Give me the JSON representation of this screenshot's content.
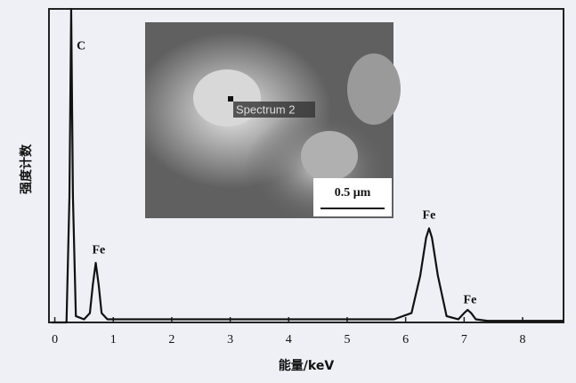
{
  "chart_data": {
    "type": "line",
    "x_label": "能量/keV",
    "y_label": "强度计数",
    "x": [
      -0.05,
      0.2,
      0.25,
      0.28,
      0.31,
      0.36,
      0.5,
      0.6,
      0.65,
      0.7,
      0.75,
      0.8,
      0.9,
      1.5,
      3.0,
      4.0,
      5.0,
      5.8,
      6.1,
      6.25,
      6.35,
      6.4,
      6.45,
      6.55,
      6.7,
      6.9,
      7.0,
      7.06,
      7.12,
      7.2,
      7.4,
      8.7
    ],
    "series": [
      {
        "color": "#111111",
        "values": [
          0,
          0,
          40,
          100,
          40,
          2,
          1,
          3,
          12,
          19,
          12,
          3,
          1,
          1,
          1,
          1,
          1,
          1,
          3,
          15,
          27,
          30,
          27,
          15,
          2,
          1,
          3,
          4,
          3,
          1,
          0.5,
          0.5
        ]
      }
    ],
    "xlim": [
      -0.1,
      8.7
    ],
    "xticks": [
      0,
      1,
      2,
      3,
      4,
      5,
      6,
      7,
      8
    ],
    "ylim": [
      0,
      100
    ],
    "annotations": [
      {
        "text": "C",
        "x": 0.45,
        "y": 88
      },
      {
        "text": "Fe",
        "x": 0.75,
        "y": 23
      },
      {
        "text": "Fe",
        "x": 6.4,
        "y": 34
      },
      {
        "text": "Fe",
        "x": 7.1,
        "y": 7
      }
    ],
    "inset": {
      "label": "Spectrum 2",
      "scale_bar": "0.5 μm"
    }
  }
}
